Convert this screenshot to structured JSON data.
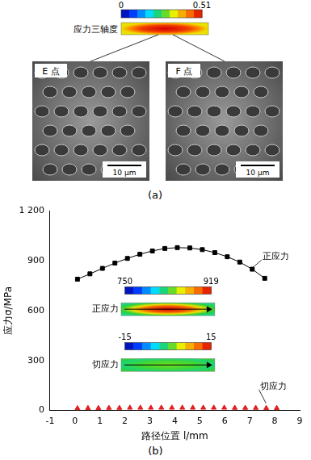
{
  "panel_a": {
    "label": "(a)",
    "colorbar": {
      "title": "应力三轴度",
      "min": 0,
      "max": 0.51
    },
    "images": [
      {
        "label": "E 点",
        "scale_bar": "10 μm"
      },
      {
        "label": "F 点",
        "scale_bar": "10 μm"
      }
    ]
  },
  "chart_data": {
    "type": "scatter",
    "panel_label": "(b)",
    "x_label": "路径位置 l/mm",
    "y_label": "应力σ/MPa",
    "xlim": [
      -1,
      9
    ],
    "xticks": [
      -1,
      0,
      1,
      2,
      3,
      4,
      5,
      6,
      7,
      8,
      9
    ],
    "ylim": [
      0,
      1200
    ],
    "yticks": [
      0,
      300,
      600,
      900,
      {
        "value": 1200,
        "label": "1 200"
      }
    ],
    "grid": false,
    "series": [
      {
        "name": "正应力",
        "color": "#000000",
        "marker": "square",
        "line_style": "solid",
        "x": [
          0.1,
          0.6,
          1.1,
          1.6,
          2.1,
          2.6,
          3.1,
          3.6,
          4.1,
          4.6,
          5.1,
          5.6,
          6.1,
          6.6,
          7.1,
          7.6
        ],
        "values": [
          790,
          822,
          855,
          887,
          915,
          940,
          960,
          975,
          980,
          978,
          968,
          950,
          925,
          893,
          850,
          795
        ]
      },
      {
        "name": "切应力",
        "color": "#e02020",
        "marker": "triangle",
        "line_style": "none",
        "x": [
          0.1,
          0.52,
          0.94,
          1.36,
          1.78,
          2.2,
          2.62,
          3.04,
          3.46,
          3.88,
          4.3,
          4.72,
          5.14,
          5.56,
          5.98,
          6.4,
          6.82,
          7.24,
          7.66,
          8.08
        ],
        "values": [
          12,
          13,
          13,
          14,
          14,
          15,
          15,
          15,
          15,
          15,
          15,
          15,
          15,
          15,
          15,
          14,
          14,
          14,
          13,
          13
        ]
      }
    ],
    "annotations": [
      {
        "text": "正应力"
      },
      {
        "text": "切应力"
      }
    ],
    "insets": [
      {
        "title": "正应力",
        "colorbar_range": [
          750,
          919
        ]
      },
      {
        "title": "切应力",
        "colorbar_range": [
          -15,
          15
        ]
      }
    ]
  }
}
